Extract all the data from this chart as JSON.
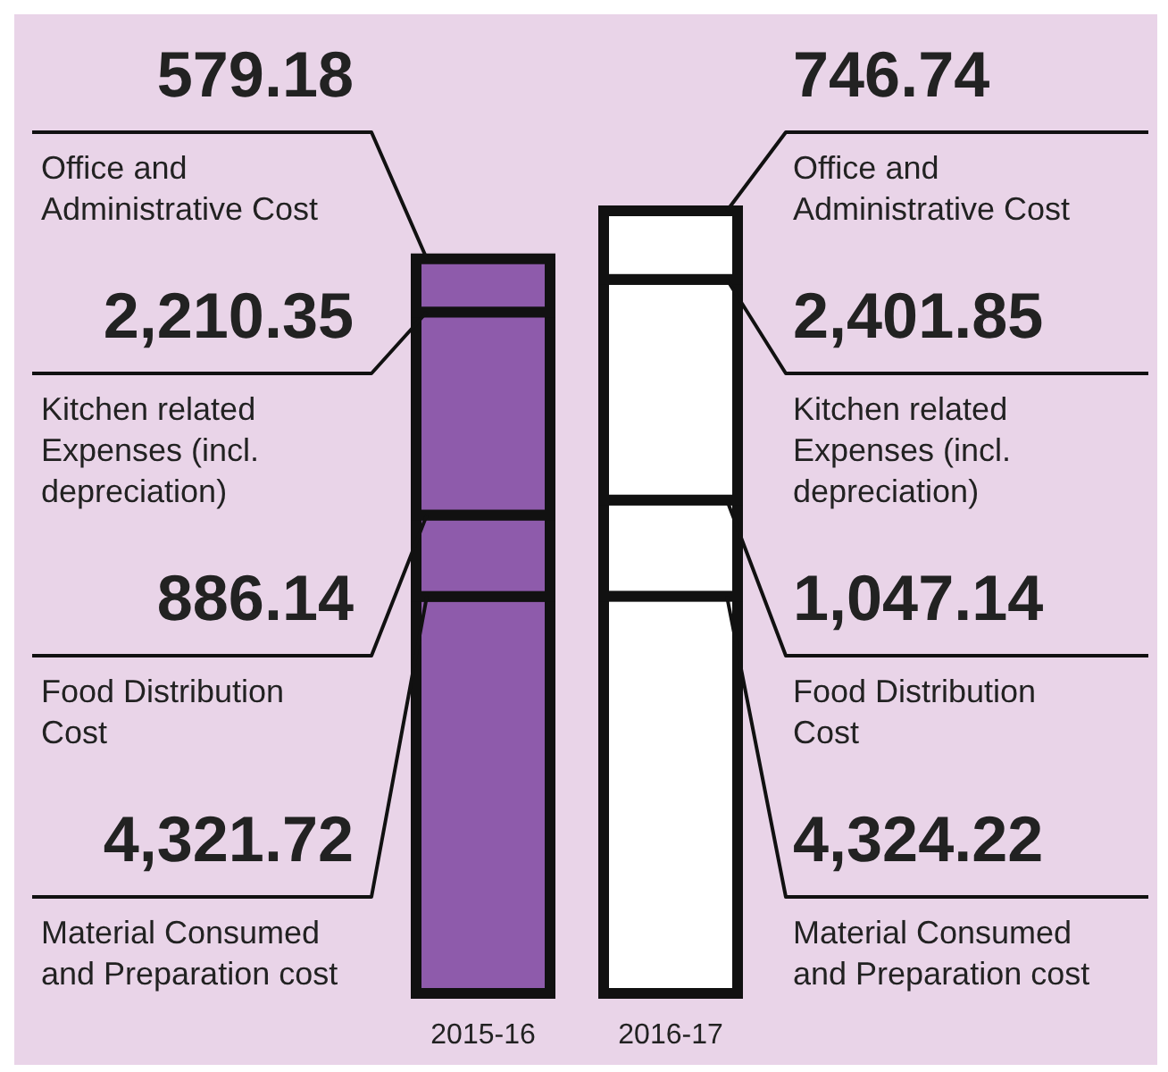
{
  "chart_data": {
    "type": "bar",
    "stacked": true,
    "categories": [
      "2015-16",
      "2016-17"
    ],
    "series": [
      {
        "name": "Material Consumed and Preparation cost",
        "colors": [
          "#8e5bab",
          "#ffffff"
        ],
        "values": [
          4321.72,
          4324.22
        ],
        "value_labels": [
          "4,321.72",
          "4,324.22"
        ]
      },
      {
        "name": "Food Distribution Cost",
        "colors": [
          "#8e5bab",
          "#ffffff"
        ],
        "values": [
          886.14,
          1047.14
        ],
        "value_labels": [
          "886.14",
          "1,047.14"
        ]
      },
      {
        "name": "Kitchen related Expenses (incl. depreciation)",
        "colors": [
          "#8e5bab",
          "#ffffff"
        ],
        "values": [
          2210.35,
          2401.85
        ],
        "value_labels": [
          "2,210.35",
          "2,401.85"
        ]
      },
      {
        "name": "Office and Administrative Cost",
        "colors": [
          "#8e5bab",
          "#ffffff"
        ],
        "values": [
          579.18,
          746.74
        ],
        "value_labels": [
          "579.18",
          "746.74"
        ]
      }
    ]
  }
}
